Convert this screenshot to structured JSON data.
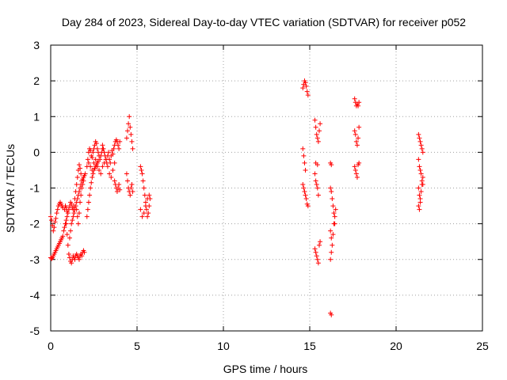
{
  "chart_data": {
    "type": "scatter",
    "title": "Day 284 of 2023, Sidereal Day-to-day VTEC variation (SDTVAR) for receiver p052",
    "xlabel": "GPS time / hours",
    "ylabel": "SDTVAR / TECUs",
    "xlim": [
      0,
      25
    ],
    "ylim": [
      -5,
      3
    ],
    "xticks": [
      0,
      5,
      10,
      15,
      20,
      25
    ],
    "yticks": [
      -5,
      -4,
      -3,
      -2,
      -1,
      0,
      1,
      2,
      3
    ],
    "xtick_labels": [
      "0",
      "5",
      "10",
      "15",
      "20",
      "25"
    ],
    "ytick_labels": [
      "-5",
      "-4",
      "-3",
      "-2",
      "-1",
      "0",
      "1",
      "2",
      "3"
    ],
    "grid": true,
    "marker": "+",
    "marker_color": "#ff0000",
    "series": [
      {
        "name": "SDTVAR",
        "points": [
          [
            0.0,
            -1.8
          ],
          [
            0.05,
            -1.9
          ],
          [
            0.1,
            -2.05
          ],
          [
            0.15,
            -2.2
          ],
          [
            0.2,
            -2.1
          ],
          [
            0.25,
            -1.95
          ],
          [
            0.3,
            -1.85
          ],
          [
            0.35,
            -1.7
          ],
          [
            0.4,
            -1.6
          ],
          [
            0.45,
            -1.5
          ],
          [
            0.5,
            -1.45
          ],
          [
            0.55,
            -1.4
          ],
          [
            0.6,
            -1.45
          ],
          [
            0.65,
            -1.5
          ],
          [
            0.7,
            -1.55
          ],
          [
            0.0,
            -2.95
          ],
          [
            0.05,
            -2.98
          ],
          [
            0.1,
            -2.95
          ],
          [
            0.15,
            -2.9
          ],
          [
            0.2,
            -2.85
          ],
          [
            0.25,
            -2.8
          ],
          [
            0.3,
            -2.75
          ],
          [
            0.35,
            -2.7
          ],
          [
            0.4,
            -2.65
          ],
          [
            0.45,
            -2.6
          ],
          [
            0.5,
            -2.55
          ],
          [
            0.55,
            -2.5
          ],
          [
            0.6,
            -2.45
          ],
          [
            0.65,
            -2.4
          ],
          [
            0.7,
            -2.35
          ],
          [
            0.75,
            -2.2
          ],
          [
            0.8,
            -2.1
          ],
          [
            0.85,
            -2.0
          ],
          [
            0.9,
            -1.9
          ],
          [
            0.95,
            -1.8
          ],
          [
            0.8,
            -1.6
          ],
          [
            0.85,
            -1.5
          ],
          [
            0.9,
            -1.55
          ],
          [
            0.95,
            -1.65
          ],
          [
            1.0,
            -1.7
          ],
          [
            1.05,
            -1.6
          ],
          [
            1.1,
            -1.5
          ],
          [
            1.15,
            -1.4
          ],
          [
            1.2,
            -1.45
          ],
          [
            1.25,
            -1.55
          ],
          [
            1.3,
            -1.6
          ],
          [
            1.35,
            -1.5
          ],
          [
            1.4,
            -1.3
          ],
          [
            1.45,
            -1.1
          ],
          [
            1.5,
            -0.9
          ],
          [
            1.55,
            -0.7
          ],
          [
            1.6,
            -0.5
          ],
          [
            1.65,
            -0.35
          ],
          [
            1.7,
            -0.45
          ],
          [
            1.75,
            -0.6
          ],
          [
            0.9,
            -2.0
          ],
          [
            0.95,
            -2.3
          ],
          [
            1.0,
            -2.6
          ],
          [
            1.05,
            -2.85
          ],
          [
            1.1,
            -2.95
          ],
          [
            1.15,
            -3.05
          ],
          [
            1.2,
            -3.1
          ],
          [
            1.25,
            -3.0
          ],
          [
            1.3,
            -2.9
          ],
          [
            1.35,
            -2.95
          ],
          [
            1.4,
            -3.0
          ],
          [
            1.45,
            -2.9
          ],
          [
            1.5,
            -2.85
          ],
          [
            1.55,
            -2.9
          ],
          [
            1.6,
            -2.95
          ],
          [
            1.65,
            -3.0
          ],
          [
            1.7,
            -2.9
          ],
          [
            1.75,
            -2.85
          ],
          [
            1.8,
            -2.9
          ],
          [
            1.85,
            -2.8
          ],
          [
            1.9,
            -2.75
          ],
          [
            1.95,
            -2.8
          ],
          [
            1.1,
            -2.4
          ],
          [
            1.15,
            -2.2
          ],
          [
            1.2,
            -2.0
          ],
          [
            1.25,
            -1.9
          ],
          [
            1.3,
            -1.8
          ],
          [
            1.35,
            -1.7
          ],
          [
            1.4,
            -1.6
          ],
          [
            1.45,
            -1.5
          ],
          [
            1.5,
            -1.4
          ],
          [
            1.55,
            -1.3
          ],
          [
            1.6,
            -1.2
          ],
          [
            1.65,
            -1.1
          ],
          [
            1.7,
            -1.0
          ],
          [
            1.75,
            -0.9
          ],
          [
            1.8,
            -0.8
          ],
          [
            1.85,
            -0.75
          ],
          [
            1.9,
            -0.7
          ],
          [
            1.95,
            -0.65
          ],
          [
            2.0,
            -0.6
          ],
          [
            1.5,
            -1.6
          ],
          [
            1.55,
            -1.8
          ],
          [
            1.6,
            -2.0
          ],
          [
            1.65,
            -1.7
          ],
          [
            1.7,
            -1.4
          ],
          [
            1.75,
            -1.2
          ],
          [
            1.8,
            -1.0
          ],
          [
            1.85,
            -0.9
          ],
          [
            1.9,
            -0.8
          ],
          [
            2.1,
            -1.8
          ],
          [
            2.15,
            -1.6
          ],
          [
            2.2,
            -1.4
          ],
          [
            2.25,
            -1.2
          ],
          [
            2.3,
            -1.0
          ],
          [
            2.35,
            -0.85
          ],
          [
            2.4,
            -0.7
          ],
          [
            2.45,
            -0.6
          ],
          [
            2.5,
            -0.5
          ],
          [
            2.55,
            -0.45
          ],
          [
            2.6,
            -0.4
          ],
          [
            2.65,
            -0.35
          ],
          [
            2.7,
            -0.3
          ],
          [
            2.75,
            -0.25
          ],
          [
            2.1,
            -0.4
          ],
          [
            2.15,
            -0.2
          ],
          [
            2.2,
            0.0
          ],
          [
            2.25,
            0.1
          ],
          [
            2.3,
            0.05
          ],
          [
            2.35,
            -0.1
          ],
          [
            2.4,
            -0.15
          ],
          [
            2.45,
            0.0
          ],
          [
            2.5,
            0.1
          ],
          [
            2.55,
            0.2
          ],
          [
            2.6,
            0.3
          ],
          [
            2.65,
            0.25
          ],
          [
            2.7,
            0.1
          ],
          [
            2.75,
            0.0
          ],
          [
            2.8,
            -0.1
          ],
          [
            2.85,
            -0.2
          ],
          [
            2.9,
            -0.1
          ],
          [
            2.95,
            0.0
          ],
          [
            3.0,
            0.1
          ],
          [
            2.2,
            -0.3
          ],
          [
            2.3,
            -0.4
          ],
          [
            2.4,
            -0.5
          ],
          [
            2.5,
            -0.3
          ],
          [
            2.6,
            -0.2
          ],
          [
            2.7,
            -0.4
          ],
          [
            2.8,
            -0.5
          ],
          [
            2.9,
            -0.6
          ],
          [
            3.0,
            -0.4
          ],
          [
            3.1,
            -0.3
          ],
          [
            3.2,
            -0.2
          ],
          [
            3.3,
            -0.4
          ],
          [
            3.4,
            -0.6
          ],
          [
            3.5,
            -0.7
          ],
          [
            3.6,
            -0.5
          ],
          [
            3.7,
            -0.3
          ],
          [
            3.0,
            0.2
          ],
          [
            3.05,
            0.1
          ],
          [
            3.1,
            0.0
          ],
          [
            3.15,
            -0.1
          ],
          [
            3.2,
            -0.2
          ],
          [
            3.25,
            -0.3
          ],
          [
            3.3,
            -0.1
          ],
          [
            3.35,
            0.0
          ],
          [
            3.4,
            -0.2
          ],
          [
            3.45,
            -0.3
          ],
          [
            3.5,
            -0.1
          ],
          [
            3.55,
            0.05
          ],
          [
            3.6,
            -0.05
          ],
          [
            3.65,
            0.1
          ],
          [
            3.7,
            0.2
          ],
          [
            3.75,
            0.3
          ],
          [
            3.8,
            0.35
          ],
          [
            3.85,
            0.3
          ],
          [
            3.9,
            0.2
          ],
          [
            3.95,
            0.1
          ],
          [
            4.0,
            0.3
          ],
          [
            3.7,
            -0.8
          ],
          [
            3.75,
            -0.9
          ],
          [
            3.8,
            -1.0
          ],
          [
            3.85,
            -1.1
          ],
          [
            3.9,
            -1.0
          ],
          [
            3.95,
            -0.9
          ],
          [
            4.0,
            -1.05
          ],
          [
            4.4,
            0.4
          ],
          [
            4.45,
            0.6
          ],
          [
            4.5,
            0.8
          ],
          [
            4.55,
            1.0
          ],
          [
            4.6,
            0.7
          ],
          [
            4.65,
            0.5
          ],
          [
            4.7,
            0.3
          ],
          [
            4.75,
            0.1
          ],
          [
            4.4,
            -0.6
          ],
          [
            4.45,
            -0.8
          ],
          [
            4.5,
            -1.0
          ],
          [
            4.55,
            -1.1
          ],
          [
            4.6,
            -1.2
          ],
          [
            4.65,
            -1.0
          ],
          [
            4.7,
            -0.9
          ],
          [
            4.75,
            -1.1
          ],
          [
            5.2,
            -0.4
          ],
          [
            5.25,
            -0.5
          ],
          [
            5.3,
            -0.6
          ],
          [
            5.35,
            -0.8
          ],
          [
            5.4,
            -1.0
          ],
          [
            5.45,
            -1.2
          ],
          [
            5.5,
            -1.4
          ],
          [
            5.55,
            -1.6
          ],
          [
            5.6,
            -1.8
          ],
          [
            5.65,
            -1.7
          ],
          [
            5.7,
            -1.5
          ],
          [
            5.75,
            -1.3
          ],
          [
            5.2,
            -1.6
          ],
          [
            5.3,
            -1.8
          ],
          [
            5.4,
            -1.7
          ],
          [
            5.5,
            -1.5
          ],
          [
            5.6,
            -1.3
          ],
          [
            5.7,
            -1.2
          ],
          [
            14.6,
            1.8
          ],
          [
            14.65,
            1.9
          ],
          [
            14.7,
            2.0
          ],
          [
            14.75,
            1.95
          ],
          [
            14.8,
            1.85
          ],
          [
            14.85,
            1.7
          ],
          [
            14.9,
            1.6
          ],
          [
            14.6,
            0.1
          ],
          [
            14.65,
            -0.1
          ],
          [
            14.7,
            -0.3
          ],
          [
            14.75,
            -0.5
          ],
          [
            14.6,
            -0.9
          ],
          [
            14.65,
            -1.0
          ],
          [
            14.7,
            -1.1
          ],
          [
            14.75,
            -1.2
          ],
          [
            14.8,
            -1.3
          ],
          [
            14.85,
            -1.45
          ],
          [
            14.9,
            -1.5
          ],
          [
            15.3,
            0.9
          ],
          [
            15.35,
            0.7
          ],
          [
            15.4,
            0.5
          ],
          [
            15.45,
            0.4
          ],
          [
            15.5,
            0.3
          ],
          [
            15.55,
            0.6
          ],
          [
            15.6,
            0.8
          ],
          [
            15.3,
            -0.6
          ],
          [
            15.35,
            -0.8
          ],
          [
            15.4,
            -0.9
          ],
          [
            15.45,
            -1.0
          ],
          [
            15.5,
            -1.2
          ],
          [
            15.3,
            -2.7
          ],
          [
            15.35,
            -2.8
          ],
          [
            15.4,
            -2.9
          ],
          [
            15.45,
            -3.0
          ],
          [
            15.5,
            -3.1
          ],
          [
            15.55,
            -2.6
          ],
          [
            15.6,
            -2.5
          ],
          [
            15.35,
            -0.3
          ],
          [
            15.45,
            -0.35
          ],
          [
            16.2,
            -0.3
          ],
          [
            16.25,
            -0.35
          ],
          [
            16.2,
            -1.0
          ],
          [
            16.25,
            -1.1
          ],
          [
            16.3,
            -1.3
          ],
          [
            16.35,
            -1.5
          ],
          [
            16.4,
            -1.7
          ],
          [
            16.45,
            -2.0
          ],
          [
            16.2,
            -2.2
          ],
          [
            16.25,
            -2.4
          ],
          [
            16.3,
            -2.6
          ],
          [
            16.35,
            -2.3
          ],
          [
            16.4,
            -2.0
          ],
          [
            16.45,
            -1.8
          ],
          [
            16.5,
            -1.6
          ],
          [
            16.2,
            -3.0
          ],
          [
            16.25,
            -2.8
          ],
          [
            16.2,
            -4.5
          ],
          [
            16.25,
            -4.55
          ],
          [
            17.6,
            1.5
          ],
          [
            17.65,
            1.4
          ],
          [
            17.7,
            1.3
          ],
          [
            17.75,
            1.35
          ],
          [
            17.8,
            1.3
          ],
          [
            17.85,
            1.4
          ],
          [
            17.6,
            0.6
          ],
          [
            17.65,
            0.5
          ],
          [
            17.7,
            0.3
          ],
          [
            17.75,
            0.2
          ],
          [
            17.8,
            0.4
          ],
          [
            17.85,
            0.7
          ],
          [
            17.6,
            -0.4
          ],
          [
            17.65,
            -0.5
          ],
          [
            17.7,
            -0.6
          ],
          [
            17.75,
            -0.7
          ],
          [
            17.8,
            -0.35
          ],
          [
            17.85,
            -0.3
          ],
          [
            21.3,
            0.5
          ],
          [
            21.35,
            0.4
          ],
          [
            21.4,
            0.3
          ],
          [
            21.45,
            0.2
          ],
          [
            21.5,
            0.1
          ],
          [
            21.55,
            0.0
          ],
          [
            21.3,
            -0.2
          ],
          [
            21.35,
            -0.4
          ],
          [
            21.4,
            -0.5
          ],
          [
            21.45,
            -0.6
          ],
          [
            21.5,
            -0.8
          ],
          [
            21.55,
            -0.9
          ],
          [
            21.3,
            -1.0
          ],
          [
            21.35,
            -1.2
          ],
          [
            21.4,
            -1.3
          ],
          [
            21.45,
            -1.1
          ],
          [
            21.5,
            -0.9
          ],
          [
            21.55,
            -0.7
          ],
          [
            21.3,
            -1.5
          ],
          [
            21.35,
            -1.6
          ],
          [
            21.4,
            -1.4
          ]
        ]
      }
    ]
  }
}
